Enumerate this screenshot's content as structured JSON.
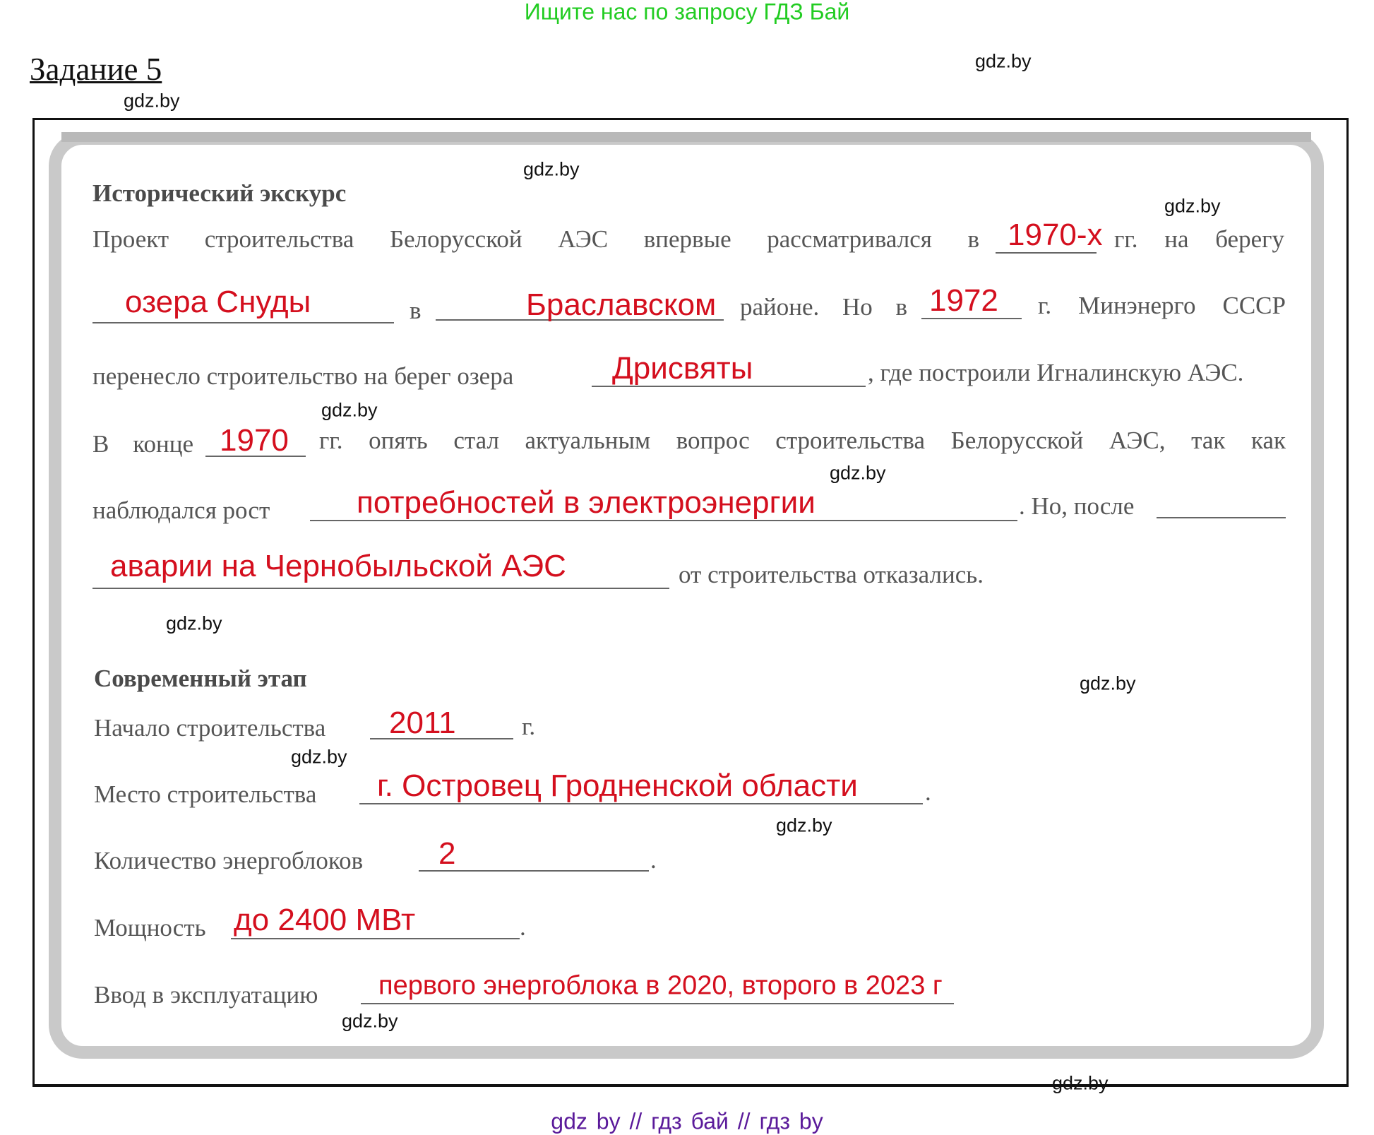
{
  "header_ad": "Ищите нас по запросу ГДЗ Бай",
  "task_title": "Задание 5",
  "section1": {
    "heading": "Исторический экскурс",
    "l1a": "Проект строительства Белорусской АЭС впервые рассматривался в",
    "a1": "1970-х",
    "l1b": "гг. на берегу",
    "a2": "озера Снуды",
    "l2a": "в",
    "a3": "Браславском",
    "l2b": "районе. Но в",
    "a4": "1972",
    "l2c": "г. Минэнерго СССР",
    "l3a": "перенесло строительство на берег озера",
    "a5": "Дрисвяты",
    "l3b": ", где построили Игналинскую АЭС.",
    "l4a": "В конце",
    "a6": "1970",
    "l4b": "гг. опять стал актуальным вопрос строительства Белорусской АЭС, так как",
    "l5a": "наблюдался рост",
    "a7": "потребностей в электроэнергии",
    "l5b": ". Но, после",
    "a8": "аварии на Чернобыльской АЭС",
    "l6a": "от строительства отказались."
  },
  "section2": {
    "heading": "Современный этап",
    "start_label": "Начало строительства",
    "start_value": "2011",
    "start_suffix": "г.",
    "place_label": "Место строительства",
    "place_value": "г. Островец Гродненской области",
    "units_label": "Количество энергоблоков",
    "units_value": "2",
    "power_label": "Мощность",
    "power_value": "до 2400 МВт",
    "launch_label": "Ввод в эксплуатацию",
    "launch_value": "первого энергоблока в 2020, второго в 2023 г",
    "dot": "."
  },
  "watermark": "gdz.by",
  "footer": "gdz by  //  гдз бай  //  гдз by",
  "colors": {
    "answer": "#d40f1e",
    "header_ad": "#22cc22",
    "footer": "#5a1a9a"
  }
}
